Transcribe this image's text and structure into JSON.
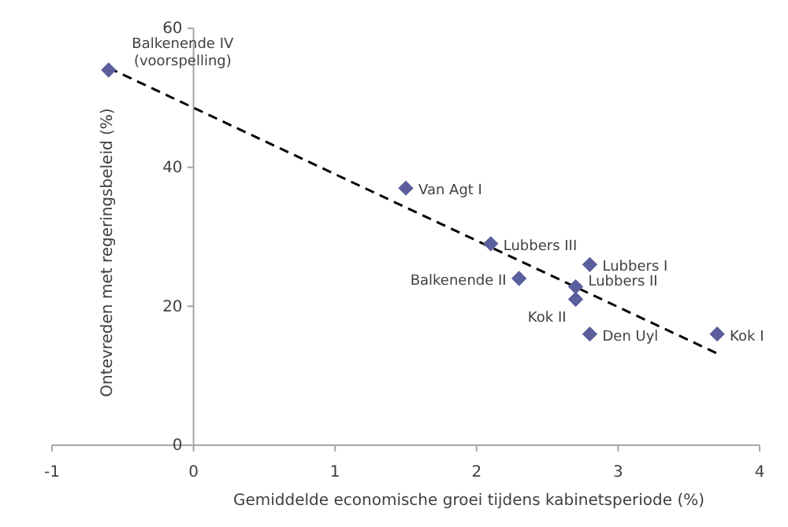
{
  "chart_data": {
    "type": "scatter",
    "xlabel": "Gemiddelde economische groei tijdens kabinetsperiode (%)",
    "ylabel": "Ontevreden met regeringsbeleid (%)",
    "xlim": [
      -1,
      4
    ],
    "xticks": [
      -1,
      0,
      1,
      2,
      3,
      4
    ],
    "ylim": [
      0,
      60
    ],
    "yticks": [
      0,
      20,
      40,
      60
    ],
    "grid": false,
    "marker": "diamond",
    "series": [
      {
        "color": "#5b5e9c",
        "x": [
          -0.6,
          1.5,
          2.1,
          2.8,
          2.3,
          2.7,
          2.7,
          2.8,
          3.7
        ],
        "values": [
          54,
          37,
          29,
          26,
          24,
          22.8,
          21,
          16,
          16
        ]
      },
      {
        "type": "line",
        "color": "#000000",
        "line_style": "dashed",
        "marker": "none",
        "x": [
          -0.6,
          3.7
        ],
        "values": [
          54.3,
          13.2
        ]
      }
    ],
    "annotations": [
      {
        "text": "Balkenende IV\n(voorspelling)",
        "x": -0.6,
        "y": 54
      },
      {
        "text": "Van Agt I",
        "x": 1.5,
        "y": 37
      },
      {
        "text": "Lubbers III",
        "x": 2.1,
        "y": 29
      },
      {
        "text": "Lubbers I",
        "x": 2.8,
        "y": 26
      },
      {
        "text": "Balkenende II",
        "x": 2.3,
        "y": 24
      },
      {
        "text": "Lubbers II",
        "x": 2.7,
        "y": 22.8
      },
      {
        "text": "Kok II",
        "x": 2.7,
        "y": 21
      },
      {
        "text": "Den Uyl",
        "x": 2.8,
        "y": 16
      },
      {
        "text": "Kok I",
        "x": 3.7,
        "y": 16
      }
    ]
  }
}
